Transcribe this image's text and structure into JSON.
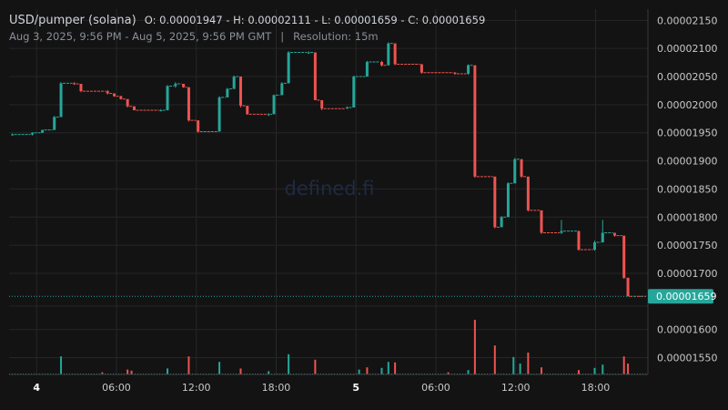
{
  "header": {
    "title": "USD/pumper (solana)",
    "ohlc_text": "O: 0.00001947 - H: 0.00002111 - L: 0.00001659 - C: 0.00001659",
    "range_text": "Aug 3, 2025, 9:56 PM - Aug 5, 2025, 9:56 PM GMT",
    "separator": "|",
    "resolution_text": "Resolution: 15m"
  },
  "watermark": "defined.fi",
  "colors": {
    "background": "#131313",
    "up": "#26a69a",
    "down": "#ef5350",
    "grid": "#262626",
    "axis_text": "#c8c8c8",
    "last_price_badge": "#26a69a"
  },
  "chart_data": {
    "type": "candlestick",
    "price_scale": {
      "min": 1.52e-05,
      "max": 2.17e-05,
      "side": "right"
    },
    "y_ticks": [
      "0.00002150",
      "0.00002100",
      "0.00002050",
      "0.00002000",
      "0.00001950",
      "0.00001900",
      "0.00001850",
      "0.00001800",
      "0.00001750",
      "0.00001700",
      "0.00001600",
      "0.00001550"
    ],
    "y_tick_values": [
      2.15e-05,
      2.1e-05,
      2.05e-05,
      2e-05,
      1.95e-05,
      1.9e-05,
      1.85e-05,
      1.8e-05,
      1.75e-05,
      1.7e-05,
      1.6e-05,
      1.55e-05
    ],
    "x_ticks": [
      {
        "label": "4",
        "hours": 2.0667,
        "bold": true
      },
      {
        "label": "06:00",
        "hours": 8.0667,
        "bold": false
      },
      {
        "label": "12:00",
        "hours": 14.0667,
        "bold": false
      },
      {
        "label": "18:00",
        "hours": 20.0667,
        "bold": false
      },
      {
        "label": "5",
        "hours": 26.0667,
        "bold": true
      },
      {
        "label": "06:00",
        "hours": 32.0667,
        "bold": false
      },
      {
        "label": "12:00",
        "hours": 38.0667,
        "bold": false
      },
      {
        "label": "18:00",
        "hours": 44.0667,
        "bold": false
      }
    ],
    "time_range_hours": [
      0,
      48
    ],
    "last_price": {
      "value": 1.659e-05,
      "label": "0.00001659"
    },
    "candles": [
      {
        "t": 0.25,
        "o": 1.947e-05,
        "h": 1.949e-05,
        "l": 1.945e-05,
        "c": 1.947e-05
      },
      {
        "t": 1.75,
        "o": 1.947e-05,
        "h": 1.951e-05,
        "l": 1.945e-05,
        "c": 1.95e-05
      },
      {
        "t": 2.5,
        "o": 1.95e-05,
        "h": 1.955e-05,
        "l": 1.95e-05,
        "c": 1.955e-05
      },
      {
        "t": 3.4,
        "o": 1.955e-05,
        "h": 1.98e-05,
        "l": 1.955e-05,
        "c": 1.978e-05
      },
      {
        "t": 3.9,
        "o": 1.978e-05,
        "h": 2.04e-05,
        "l": 1.978e-05,
        "c": 2.038e-05
      },
      {
        "t": 4.9,
        "o": 2.038e-05,
        "h": 2.04e-05,
        "l": 2.035e-05,
        "c": 2.037e-05
      },
      {
        "t": 5.4,
        "o": 2.037e-05,
        "h": 2.037e-05,
        "l": 2.022e-05,
        "c": 2.024e-05
      },
      {
        "t": 7.4,
        "o": 2.024e-05,
        "h": 2.026e-05,
        "l": 2.018e-05,
        "c": 2.02e-05
      },
      {
        "t": 7.9,
        "o": 2.02e-05,
        "h": 2.02e-05,
        "l": 2.014e-05,
        "c": 2.015e-05
      },
      {
        "t": 8.4,
        "o": 2.015e-05,
        "h": 2.016e-05,
        "l": 2.009e-05,
        "c": 2.01e-05
      },
      {
        "t": 8.9,
        "o": 2.01e-05,
        "h": 2.01e-05,
        "l": 1.995e-05,
        "c": 1.997e-05
      },
      {
        "t": 9.4,
        "o": 1.997e-05,
        "h": 1.997e-05,
        "l": 1.99e-05,
        "c": 1.99e-05
      },
      {
        "t": 11.4,
        "o": 1.99e-05,
        "h": 1.992e-05,
        "l": 1.988e-05,
        "c": 1.99e-05
      },
      {
        "t": 11.9,
        "o": 1.99e-05,
        "h": 2.035e-05,
        "l": 1.99e-05,
        "c": 2.033e-05
      },
      {
        "t": 12.5,
        "o": 2.033e-05,
        "h": 2.04e-05,
        "l": 2.03e-05,
        "c": 2.037e-05
      },
      {
        "t": 13.1,
        "o": 2.037e-05,
        "h": 2.037e-05,
        "l": 2.03e-05,
        "c": 2.031e-05
      },
      {
        "t": 13.5,
        "o": 2.031e-05,
        "h": 2.031e-05,
        "l": 1.97e-05,
        "c": 1.972e-05
      },
      {
        "t": 14.2,
        "o": 1.972e-05,
        "h": 1.972e-05,
        "l": 1.95e-05,
        "c": 1.952e-05
      },
      {
        "t": 15.8,
        "o": 1.952e-05,
        "h": 2.015e-05,
        "l": 1.952e-05,
        "c": 2.013e-05
      },
      {
        "t": 16.4,
        "o": 2.013e-05,
        "h": 2.03e-05,
        "l": 2.013e-05,
        "c": 2.028e-05
      },
      {
        "t": 16.9,
        "o": 2.028e-05,
        "h": 2.052e-05,
        "l": 2.028e-05,
        "c": 2.05e-05
      },
      {
        "t": 17.4,
        "o": 2.05e-05,
        "h": 2.05e-05,
        "l": 1.995e-05,
        "c": 1.998e-05
      },
      {
        "t": 17.9,
        "o": 1.998e-05,
        "h": 1.998e-05,
        "l": 1.982e-05,
        "c": 1.983e-05
      },
      {
        "t": 19.5,
        "o": 1.983e-05,
        "h": 1.985e-05,
        "l": 1.98e-05,
        "c": 1.983e-05
      },
      {
        "t": 19.9,
        "o": 1.983e-05,
        "h": 2.018e-05,
        "l": 1.983e-05,
        "c": 2.017e-05
      },
      {
        "t": 20.5,
        "o": 2.017e-05,
        "h": 2.04e-05,
        "l": 2.017e-05,
        "c": 2.038e-05
      },
      {
        "t": 21.0,
        "o": 2.038e-05,
        "h": 2.095e-05,
        "l": 2.038e-05,
        "c": 2.093e-05
      },
      {
        "t": 22.5,
        "o": 2.093e-05,
        "h": 2.095e-05,
        "l": 2.09e-05,
        "c": 2.093e-05
      },
      {
        "t": 23.0,
        "o": 2.093e-05,
        "h": 2.093e-05,
        "l": 2.01e-05,
        "c": 2.008e-05
      },
      {
        "t": 23.5,
        "o": 2.008e-05,
        "h": 2.008e-05,
        "l": 1.99e-05,
        "c": 1.993e-05
      },
      {
        "t": 25.4,
        "o": 1.993e-05,
        "h": 1.997e-05,
        "l": 1.993e-05,
        "c": 1.995e-05
      },
      {
        "t": 25.9,
        "o": 1.995e-05,
        "h": 2.052e-05,
        "l": 1.995e-05,
        "c": 2.05e-05
      },
      {
        "t": 26.9,
        "o": 2.05e-05,
        "h": 2.078e-05,
        "l": 2.05e-05,
        "c": 2.076e-05
      },
      {
        "t": 28.0,
        "o": 2.076e-05,
        "h": 2.078e-05,
        "l": 2.068e-05,
        "c": 2.07e-05
      },
      {
        "t": 28.5,
        "o": 2.07e-05,
        "h": 2.111e-05,
        "l": 2.07e-05,
        "c": 2.109e-05
      },
      {
        "t": 29.0,
        "o": 2.109e-05,
        "h": 2.109e-05,
        "l": 2.07e-05,
        "c": 2.072e-05
      },
      {
        "t": 31.0,
        "o": 2.072e-05,
        "h": 2.072e-05,
        "l": 2.055e-05,
        "c": 2.057e-05
      },
      {
        "t": 33.5,
        "o": 2.057e-05,
        "h": 2.058e-05,
        "l": 2.053e-05,
        "c": 2.055e-05
      },
      {
        "t": 34.5,
        "o": 2.055e-05,
        "h": 2.072e-05,
        "l": 2.053e-05,
        "c": 2.07e-05
      },
      {
        "t": 35.0,
        "o": 2.07e-05,
        "h": 2.07e-05,
        "l": 1.87e-05,
        "c": 1.872e-05
      },
      {
        "t": 36.5,
        "o": 1.872e-05,
        "h": 1.872e-05,
        "l": 1.78e-05,
        "c": 1.782e-05
      },
      {
        "t": 37.0,
        "o": 1.782e-05,
        "h": 1.802e-05,
        "l": 1.782e-05,
        "c": 1.8e-05
      },
      {
        "t": 37.5,
        "o": 1.8e-05,
        "h": 1.862e-05,
        "l": 1.8e-05,
        "c": 1.86e-05
      },
      {
        "t": 38.0,
        "o": 1.86e-05,
        "h": 1.905e-05,
        "l": 1.86e-05,
        "c": 1.903e-05
      },
      {
        "t": 38.5,
        "o": 1.903e-05,
        "h": 1.903e-05,
        "l": 1.87e-05,
        "c": 1.872e-05
      },
      {
        "t": 39.0,
        "o": 1.872e-05,
        "h": 1.872e-05,
        "l": 1.81e-05,
        "c": 1.812e-05
      },
      {
        "t": 40.0,
        "o": 1.812e-05,
        "h": 1.812e-05,
        "l": 1.77e-05,
        "c": 1.772e-05
      },
      {
        "t": 41.5,
        "o": 1.772e-05,
        "h": 1.795e-05,
        "l": 1.77e-05,
        "c": 1.775e-05
      },
      {
        "t": 42.8,
        "o": 1.775e-05,
        "h": 1.776e-05,
        "l": 1.74e-05,
        "c": 1.742e-05
      },
      {
        "t": 44.0,
        "o": 1.742e-05,
        "h": 1.758e-05,
        "l": 1.74e-05,
        "c": 1.755e-05
      },
      {
        "t": 44.6,
        "o": 1.755e-05,
        "h": 1.795e-05,
        "l": 1.755e-05,
        "c": 1.772e-05
      },
      {
        "t": 45.5,
        "o": 1.772e-05,
        "h": 1.772e-05,
        "l": 1.765e-05,
        "c": 1.767e-05
      },
      {
        "t": 46.2,
        "o": 1.767e-05,
        "h": 1.767e-05,
        "l": 1.69e-05,
        "c": 1.692e-05
      },
      {
        "t": 46.5,
        "o": 1.692e-05,
        "h": 1.692e-05,
        "l": 1.659e-05,
        "c": 1.659e-05
      }
    ],
    "volume": {
      "max": 100,
      "bars": [
        {
          "t": 3.9,
          "v": 33,
          "up": true
        },
        {
          "t": 7.0,
          "v": 4,
          "up": false
        },
        {
          "t": 8.9,
          "v": 9,
          "up": false
        },
        {
          "t": 9.2,
          "v": 7,
          "up": false
        },
        {
          "t": 11.9,
          "v": 11,
          "up": true
        },
        {
          "t": 13.5,
          "v": 33,
          "up": false
        },
        {
          "t": 15.8,
          "v": 23,
          "up": true
        },
        {
          "t": 17.4,
          "v": 11,
          "up": false
        },
        {
          "t": 19.5,
          "v": 6,
          "up": true
        },
        {
          "t": 21.0,
          "v": 37,
          "up": true
        },
        {
          "t": 23.0,
          "v": 27,
          "up": false
        },
        {
          "t": 26.3,
          "v": 9,
          "up": true
        },
        {
          "t": 26.9,
          "v": 13,
          "up": false
        },
        {
          "t": 28.0,
          "v": 12,
          "up": true
        },
        {
          "t": 28.5,
          "v": 23,
          "up": true
        },
        {
          "t": 29.0,
          "v": 22,
          "up": false
        },
        {
          "t": 33.0,
          "v": 4,
          "up": false
        },
        {
          "t": 34.5,
          "v": 8,
          "up": true
        },
        {
          "t": 35.0,
          "v": 100,
          "up": false
        },
        {
          "t": 36.5,
          "v": 53,
          "up": false
        },
        {
          "t": 37.9,
          "v": 32,
          "up": true
        },
        {
          "t": 38.4,
          "v": 20,
          "up": true
        },
        {
          "t": 39.0,
          "v": 40,
          "up": false
        },
        {
          "t": 40.0,
          "v": 13,
          "up": false
        },
        {
          "t": 42.8,
          "v": 8,
          "up": false
        },
        {
          "t": 44.0,
          "v": 12,
          "up": true
        },
        {
          "t": 44.6,
          "v": 18,
          "up": true
        },
        {
          "t": 46.2,
          "v": 33,
          "up": false
        },
        {
          "t": 46.5,
          "v": 20,
          "up": false
        }
      ]
    }
  }
}
